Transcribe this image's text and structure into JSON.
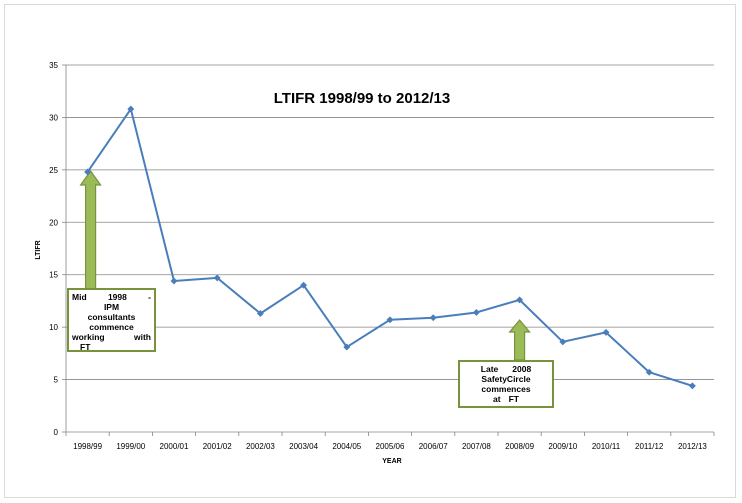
{
  "chart_data": {
    "type": "line",
    "title": "LTIFR 1998/99 to 2012/13",
    "xlabel": "YEAR",
    "ylabel": "LTIFR",
    "ylim": [
      0,
      35
    ],
    "yticks": [
      0,
      5,
      10,
      15,
      20,
      25,
      30,
      35
    ],
    "grid": "horizontal",
    "legend": "none",
    "categories": [
      "1998/99",
      "1999/00",
      "2000/01",
      "2001/02",
      "2002/03",
      "2003/04",
      "2004/05",
      "2005/06",
      "2006/07",
      "2007/08",
      "2008/09",
      "2009/10",
      "2010/11",
      "2011/12",
      "2012/13"
    ],
    "series": [
      {
        "values": [
          24.8,
          30.8,
          14.4,
          14.7,
          11.3,
          14.0,
          8.1,
          10.7,
          10.9,
          11.4,
          12.6,
          8.6,
          9.5,
          5.7,
          4.4
        ],
        "color": "#4a7ebb"
      }
    ],
    "annotations": [
      {
        "category": "1998/99",
        "lines": [
          [
            "Mid",
            "1998",
            "-"
          ],
          [
            "IPM"
          ],
          [
            "consultants"
          ],
          [
            "commence"
          ],
          [
            "working",
            "with"
          ],
          [
            "FT"
          ]
        ]
      },
      {
        "category": "2008/09",
        "lines": [
          [
            "Late",
            "2008"
          ],
          [
            "SafetyCircle"
          ],
          [
            "commences"
          ],
          [
            "at",
            "FT"
          ]
        ]
      }
    ],
    "annotation_arrow_color": "#9bbb59",
    "annotation_border_color": "#77933c"
  }
}
